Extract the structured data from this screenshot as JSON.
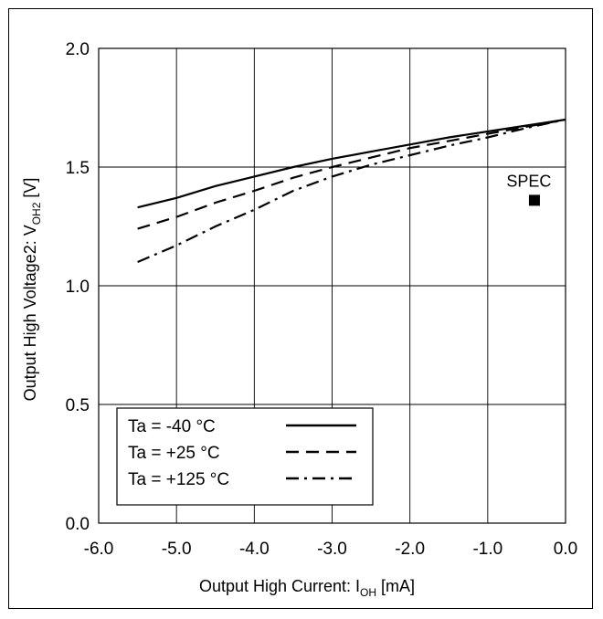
{
  "chart_data": {
    "type": "line",
    "xlabel_main": "Output High Current: I",
    "xlabel_sub": "OH",
    "xlabel_unit": " [mA]",
    "ylabel_main": "Output High Voltage2: V",
    "ylabel_sub": "OH2",
    "ylabel_unit": " [V]",
    "xlim": [
      -6.0,
      0.0
    ],
    "ylim": [
      0.0,
      2.0
    ],
    "x_ticks": [
      -6.0,
      -5.0,
      -4.0,
      -3.0,
      -2.0,
      -1.0,
      0.0
    ],
    "y_ticks": [
      0.0,
      0.5,
      1.0,
      1.5,
      2.0
    ],
    "x_tick_labels": [
      "-6.0",
      "-5.0",
      "-4.0",
      "-3.0",
      "-2.0",
      "-1.0",
      "0.0"
    ],
    "y_tick_labels": [
      "0.0",
      "0.5",
      "1.0",
      "1.5",
      "2.0"
    ],
    "grid": true,
    "legend_position": "bottom-left",
    "series": [
      {
        "name": "Ta = -40 °C",
        "style": "solid",
        "color": "#000000",
        "x": [
          -5.5,
          -5.0,
          -4.5,
          -4.0,
          -3.5,
          -3.0,
          -2.5,
          -2.0,
          -1.5,
          -1.0,
          -0.5,
          0.0
        ],
        "y": [
          1.33,
          1.37,
          1.42,
          1.46,
          1.5,
          1.535,
          1.565,
          1.595,
          1.625,
          1.65,
          1.675,
          1.7
        ]
      },
      {
        "name": "Ta = +25 °C",
        "style": "dashed",
        "color": "#000000",
        "x": [
          -5.5,
          -5.0,
          -4.5,
          -4.0,
          -3.5,
          -3.0,
          -2.5,
          -2.0,
          -1.5,
          -1.0,
          -0.5,
          0.0
        ],
        "y": [
          1.24,
          1.29,
          1.35,
          1.4,
          1.455,
          1.5,
          1.54,
          1.58,
          1.61,
          1.64,
          1.67,
          1.7
        ]
      },
      {
        "name": "Ta = +125 °C",
        "style": "dashdot",
        "color": "#000000",
        "x": [
          -5.5,
          -5.0,
          -4.5,
          -4.0,
          -3.5,
          -3.0,
          -2.5,
          -2.0,
          -1.5,
          -1.0,
          -0.5,
          0.0
        ],
        "y": [
          1.1,
          1.17,
          1.25,
          1.32,
          1.4,
          1.46,
          1.51,
          1.55,
          1.59,
          1.625,
          1.665,
          1.7
        ]
      }
    ],
    "annotations": [
      {
        "label": "SPEC",
        "x": -0.4,
        "y": 1.36,
        "marker": "square"
      }
    ]
  }
}
